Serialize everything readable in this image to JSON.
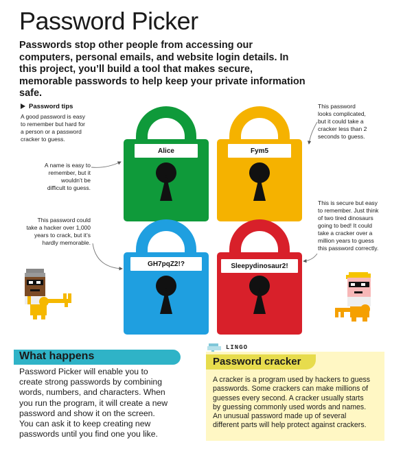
{
  "title": "Password Picker",
  "intro": "Passwords stop other people from accessing our computers, personal emails, and website login details. In this project, you’ll build a tool that makes secure, memorable passwords to help keep your private information safe.",
  "tips": {
    "heading": "Password tips",
    "intro_note": [
      "A good password is easy",
      "to remember but hard for",
      "a person or a password",
      "cracker to guess."
    ],
    "note_alice": [
      "A name is easy to",
      "remember, but it",
      "wouldn’t be",
      "difficult to guess."
    ],
    "note_fym": [
      "This password",
      "looks complicated,",
      "but it could take a",
      "cracker less than 2",
      "seconds to guess."
    ],
    "note_gh": [
      "This password could",
      "take a hacker over 1,000",
      "years to crack, but it’s",
      "hardly memorable."
    ],
    "note_sleepy": [
      "This is secure but easy",
      "to remember. Just think",
      "of two tired dinosaurs",
      "going to bed! It could",
      "take a cracker over a",
      "million years to guess",
      "this password correctly."
    ]
  },
  "locks": [
    {
      "password": "Alice",
      "color": "#0f9a3a"
    },
    {
      "password": "Fym5",
      "color": "#f5b200"
    },
    {
      "password": "GH7pqZ2!?",
      "color": "#1f9fe0"
    },
    {
      "password": "Sleepydinosaur2!",
      "color": "#d8202a"
    }
  ],
  "what_happens": {
    "heading": "What happens",
    "lines": [
      "Password Picker will enable you to",
      "create strong passwords by combining",
      "words, numbers, and characters. When",
      "you run the program, it will create a new",
      "password and show it on the screen.",
      "You can ask it to keep creating new",
      "passwords until you find one you like."
    ]
  },
  "lingo": {
    "label": "LINGO",
    "term": "Password cracker",
    "lines": [
      "A cracker is a program used by hackers to guess",
      "passwords. Some crackers can make millions of",
      "guesses every second. A cracker usually starts",
      "by guessing commonly used words and names.",
      "An unusual password made up of several",
      "different parts will help protect against crackers."
    ]
  },
  "colors": {
    "accent_teal": "#2fb3c7",
    "lingo_yellow": "#e7dc4d",
    "lingo_bg": "#fff7c4"
  }
}
